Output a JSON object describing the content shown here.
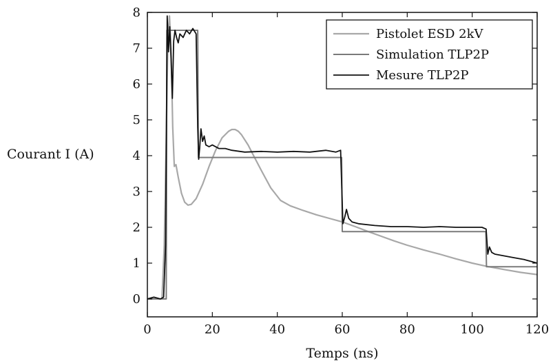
{
  "chart_data": {
    "type": "line",
    "title": "",
    "xlabel": "Temps (ns)",
    "ylabel": "Courant I (A)",
    "xlim": [
      0,
      120
    ],
    "ylim": [
      -0.5,
      8
    ],
    "xticks": [
      0,
      20,
      40,
      60,
      80,
      100,
      120
    ],
    "yticks": [
      0,
      1,
      2,
      3,
      4,
      5,
      6,
      7,
      8
    ],
    "grid": false,
    "legend_position": "top-right",
    "series": [
      {
        "name": "Pistolet ESD 2kV",
        "color": "#a8a8a8",
        "x": [
          0,
          4.5,
          5.2,
          5.8,
          6.3,
          6.8,
          7.3,
          7.8,
          8.3,
          8.8,
          9.5,
          10.5,
          11.5,
          12.5,
          13.5,
          15,
          17,
          19,
          21,
          23,
          25,
          26,
          27,
          28,
          29,
          31,
          33,
          35,
          38,
          41,
          44,
          48,
          52,
          56,
          60,
          64,
          68,
          72,
          76,
          80,
          85,
          90,
          95,
          100,
          105,
          110,
          115,
          120
        ],
        "y": [
          0,
          0,
          1.5,
          4.5,
          7.2,
          7.9,
          7.0,
          4.8,
          3.7,
          3.75,
          3.4,
          2.95,
          2.7,
          2.62,
          2.64,
          2.8,
          3.2,
          3.7,
          4.15,
          4.5,
          4.68,
          4.73,
          4.73,
          4.68,
          4.58,
          4.3,
          3.95,
          3.6,
          3.1,
          2.75,
          2.6,
          2.47,
          2.35,
          2.25,
          2.15,
          2.02,
          1.88,
          1.75,
          1.62,
          1.5,
          1.37,
          1.25,
          1.12,
          1.0,
          0.9,
          0.82,
          0.74,
          0.68
        ]
      },
      {
        "name": "Simulation TLP2P",
        "color": "#7a7a7a",
        "x": [
          0,
          5.8,
          6.0,
          15.5,
          15.7,
          59.8,
          60.0,
          104.2,
          104.4,
          120
        ],
        "y": [
          0,
          0,
          7.5,
          7.5,
          3.95,
          3.95,
          1.88,
          1.88,
          0.9,
          0.9
        ]
      },
      {
        "name": "Mesure TLP2P",
        "color": "#111111",
        "x": [
          0,
          2,
          4,
          5,
          5.6,
          6.1,
          6.5,
          6.9,
          7.3,
          7.7,
          8.1,
          8.5,
          9,
          9.5,
          10,
          11,
          12,
          13,
          14,
          15,
          15.5,
          15.8,
          16.1,
          16.5,
          17,
          17.5,
          18,
          19,
          20,
          22,
          24,
          26,
          30,
          35,
          40,
          45,
          50,
          55,
          58,
          59.5,
          60.2,
          60.8,
          61.3,
          62,
          63,
          65,
          70,
          75,
          80,
          85,
          90,
          95,
          100,
          103,
          104.3,
          104.8,
          105.3,
          106,
          107,
          110,
          113,
          116,
          118,
          120
        ],
        "y": [
          0,
          0.05,
          0,
          0.05,
          1.5,
          7.9,
          6.9,
          7.6,
          6.7,
          5.6,
          7.2,
          7.5,
          7.3,
          7.15,
          7.4,
          7.3,
          7.5,
          7.4,
          7.55,
          7.4,
          4.8,
          3.9,
          4.2,
          4.75,
          4.4,
          4.55,
          4.3,
          4.25,
          4.3,
          4.2,
          4.2,
          4.15,
          4.1,
          4.12,
          4.1,
          4.12,
          4.1,
          4.15,
          4.1,
          4.15,
          2.1,
          2.3,
          2.5,
          2.25,
          2.15,
          2.1,
          2.05,
          2.02,
          2.02,
          2.0,
          2.02,
          2.0,
          2.0,
          2.0,
          1.95,
          1.25,
          1.45,
          1.3,
          1.25,
          1.2,
          1.15,
          1.1,
          1.05,
          1.0
        ]
      }
    ]
  }
}
